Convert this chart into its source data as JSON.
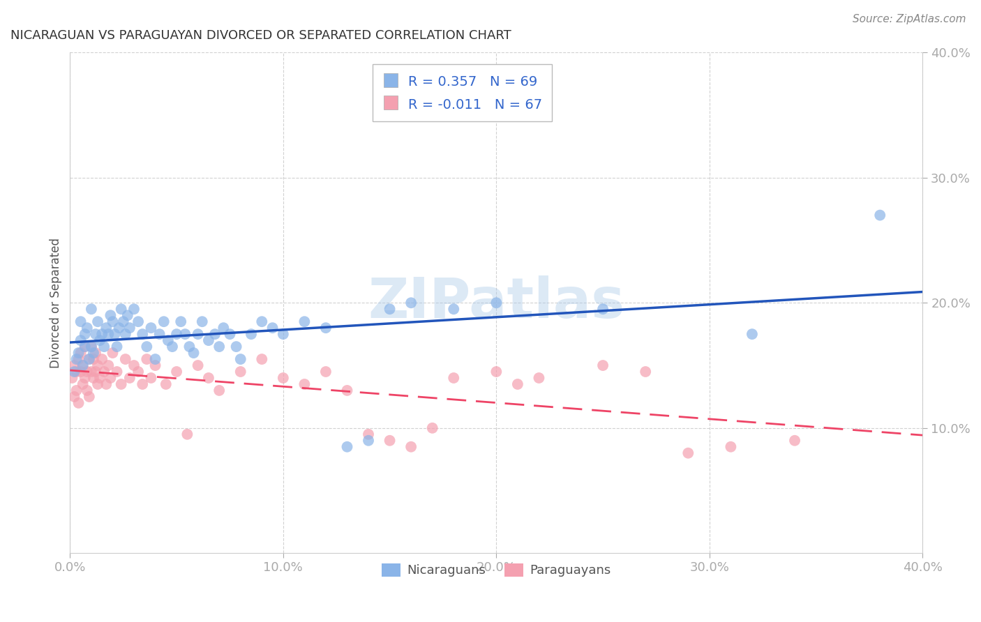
{
  "title": "NICARAGUAN VS PARAGUAYAN DIVORCED OR SEPARATED CORRELATION CHART",
  "source": "Source: ZipAtlas.com",
  "ylabel": "Divorced or Separated",
  "xlim": [
    0.0,
    0.4
  ],
  "ylim": [
    0.0,
    0.4
  ],
  "xticks": [
    0.0,
    0.1,
    0.2,
    0.3,
    0.4
  ],
  "yticks": [
    0.1,
    0.2,
    0.3,
    0.4
  ],
  "xtick_labels": [
    "0.0%",
    "10.0%",
    "20.0%",
    "30.0%",
    "40.0%"
  ],
  "ytick_labels": [
    "10.0%",
    "20.0%",
    "30.0%",
    "40.0%"
  ],
  "grid_color": "#cccccc",
  "background_color": "#ffffff",
  "nicaraguan_color": "#8ab4e8",
  "paraguayan_color": "#f4a0b0",
  "line_blue": "#2255bb",
  "line_pink": "#ee4466",
  "R_nicaraguan": 0.357,
  "N_nicaraguan": 69,
  "R_paraguayan": -0.011,
  "N_paraguayan": 67,
  "nicaraguan_x": [
    0.002,
    0.003,
    0.004,
    0.005,
    0.005,
    0.006,
    0.007,
    0.007,
    0.008,
    0.009,
    0.01,
    0.01,
    0.011,
    0.012,
    0.013,
    0.014,
    0.015,
    0.016,
    0.017,
    0.018,
    0.019,
    0.02,
    0.021,
    0.022,
    0.023,
    0.024,
    0.025,
    0.026,
    0.027,
    0.028,
    0.03,
    0.032,
    0.034,
    0.036,
    0.038,
    0.04,
    0.042,
    0.044,
    0.046,
    0.048,
    0.05,
    0.052,
    0.054,
    0.056,
    0.058,
    0.06,
    0.062,
    0.065,
    0.068,
    0.07,
    0.072,
    0.075,
    0.078,
    0.08,
    0.085,
    0.09,
    0.095,
    0.1,
    0.11,
    0.12,
    0.13,
    0.14,
    0.15,
    0.16,
    0.18,
    0.2,
    0.25,
    0.32,
    0.38
  ],
  "nicaraguan_y": [
    0.145,
    0.155,
    0.16,
    0.17,
    0.185,
    0.15,
    0.165,
    0.175,
    0.18,
    0.155,
    0.165,
    0.195,
    0.16,
    0.175,
    0.185,
    0.17,
    0.175,
    0.165,
    0.18,
    0.175,
    0.19,
    0.185,
    0.175,
    0.165,
    0.18,
    0.195,
    0.185,
    0.175,
    0.19,
    0.18,
    0.195,
    0.185,
    0.175,
    0.165,
    0.18,
    0.155,
    0.175,
    0.185,
    0.17,
    0.165,
    0.175,
    0.185,
    0.175,
    0.165,
    0.16,
    0.175,
    0.185,
    0.17,
    0.175,
    0.165,
    0.18,
    0.175,
    0.165,
    0.155,
    0.175,
    0.185,
    0.18,
    0.175,
    0.185,
    0.18,
    0.085,
    0.09,
    0.195,
    0.2,
    0.195,
    0.2,
    0.195,
    0.175,
    0.27
  ],
  "paraguayan_x": [
    0.001,
    0.002,
    0.002,
    0.003,
    0.003,
    0.004,
    0.004,
    0.005,
    0.005,
    0.006,
    0.006,
    0.007,
    0.007,
    0.008,
    0.008,
    0.009,
    0.009,
    0.01,
    0.01,
    0.011,
    0.011,
    0.012,
    0.012,
    0.013,
    0.013,
    0.014,
    0.015,
    0.016,
    0.017,
    0.018,
    0.019,
    0.02,
    0.022,
    0.024,
    0.026,
    0.028,
    0.03,
    0.032,
    0.034,
    0.036,
    0.038,
    0.04,
    0.045,
    0.05,
    0.055,
    0.06,
    0.065,
    0.07,
    0.08,
    0.09,
    0.1,
    0.11,
    0.12,
    0.13,
    0.14,
    0.15,
    0.16,
    0.17,
    0.18,
    0.2,
    0.21,
    0.22,
    0.25,
    0.27,
    0.29,
    0.31,
    0.34
  ],
  "paraguayan_y": [
    0.14,
    0.15,
    0.125,
    0.145,
    0.13,
    0.155,
    0.12,
    0.145,
    0.16,
    0.135,
    0.15,
    0.14,
    0.165,
    0.13,
    0.145,
    0.155,
    0.125,
    0.145,
    0.165,
    0.14,
    0.155,
    0.145,
    0.16,
    0.135,
    0.15,
    0.14,
    0.155,
    0.145,
    0.135,
    0.15,
    0.14,
    0.16,
    0.145,
    0.135,
    0.155,
    0.14,
    0.15,
    0.145,
    0.135,
    0.155,
    0.14,
    0.15,
    0.135,
    0.145,
    0.095,
    0.15,
    0.14,
    0.13,
    0.145,
    0.155,
    0.14,
    0.135,
    0.145,
    0.13,
    0.095,
    0.09,
    0.085,
    0.1,
    0.14,
    0.145,
    0.135,
    0.14,
    0.15,
    0.145,
    0.08,
    0.085,
    0.09
  ],
  "watermark_text": "ZIPatlas",
  "watermark_color": "#a8c8e8",
  "watermark_alpha": 0.4
}
